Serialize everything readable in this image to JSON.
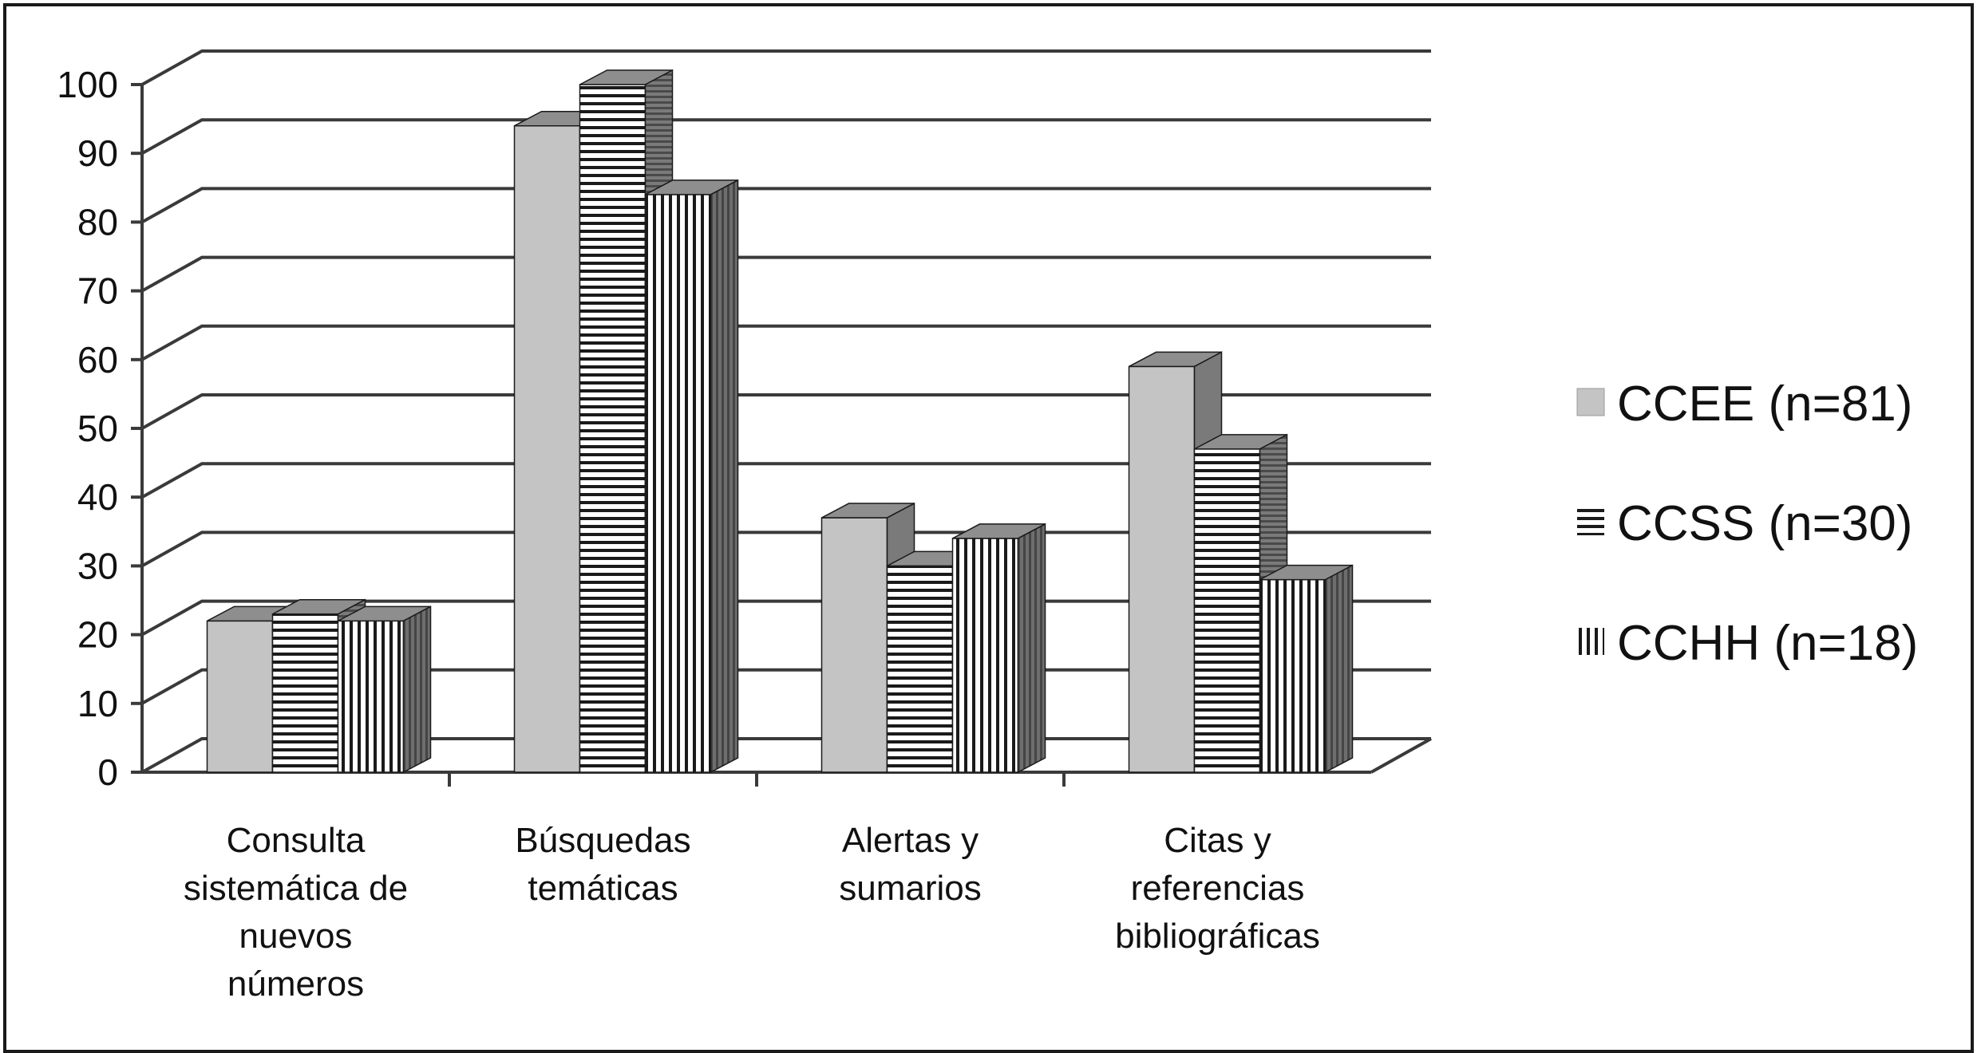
{
  "chart_data": {
    "type": "bar",
    "variant": "3d-clustered-column",
    "title": "",
    "xlabel": "",
    "ylabel": "",
    "ylim": [
      0,
      100
    ],
    "yticks": [
      0,
      10,
      20,
      30,
      40,
      50,
      60,
      70,
      80,
      90,
      100
    ],
    "grid": true,
    "legend_position": "right",
    "categories": [
      [
        "Consulta",
        "sistemática de",
        "nuevos",
        "números"
      ],
      [
        "Búsquedas",
        "temáticas"
      ],
      [
        "Alertas y",
        "sumarios"
      ],
      [
        "Citas y",
        "referencias",
        "bibliográficas"
      ]
    ],
    "series": [
      {
        "name": "CCEE (n=81)",
        "pattern": "solid",
        "color": "#c4c4c4",
        "values": [
          22,
          94,
          37,
          59
        ]
      },
      {
        "name": "CCSS (n=30)",
        "pattern": "horizontal-lines",
        "color": "#ffffff",
        "values": [
          23,
          100,
          30,
          47
        ]
      },
      {
        "name": "CCHH (n=18)",
        "pattern": "vertical-lines",
        "color": "#ffffff",
        "values": [
          22,
          84,
          34,
          28
        ]
      }
    ],
    "colors": {
      "grid": "#3a3a3a",
      "side": "#7a7a7a",
      "top": "#8e8e8e",
      "stroke": "#1a1a1a"
    }
  }
}
